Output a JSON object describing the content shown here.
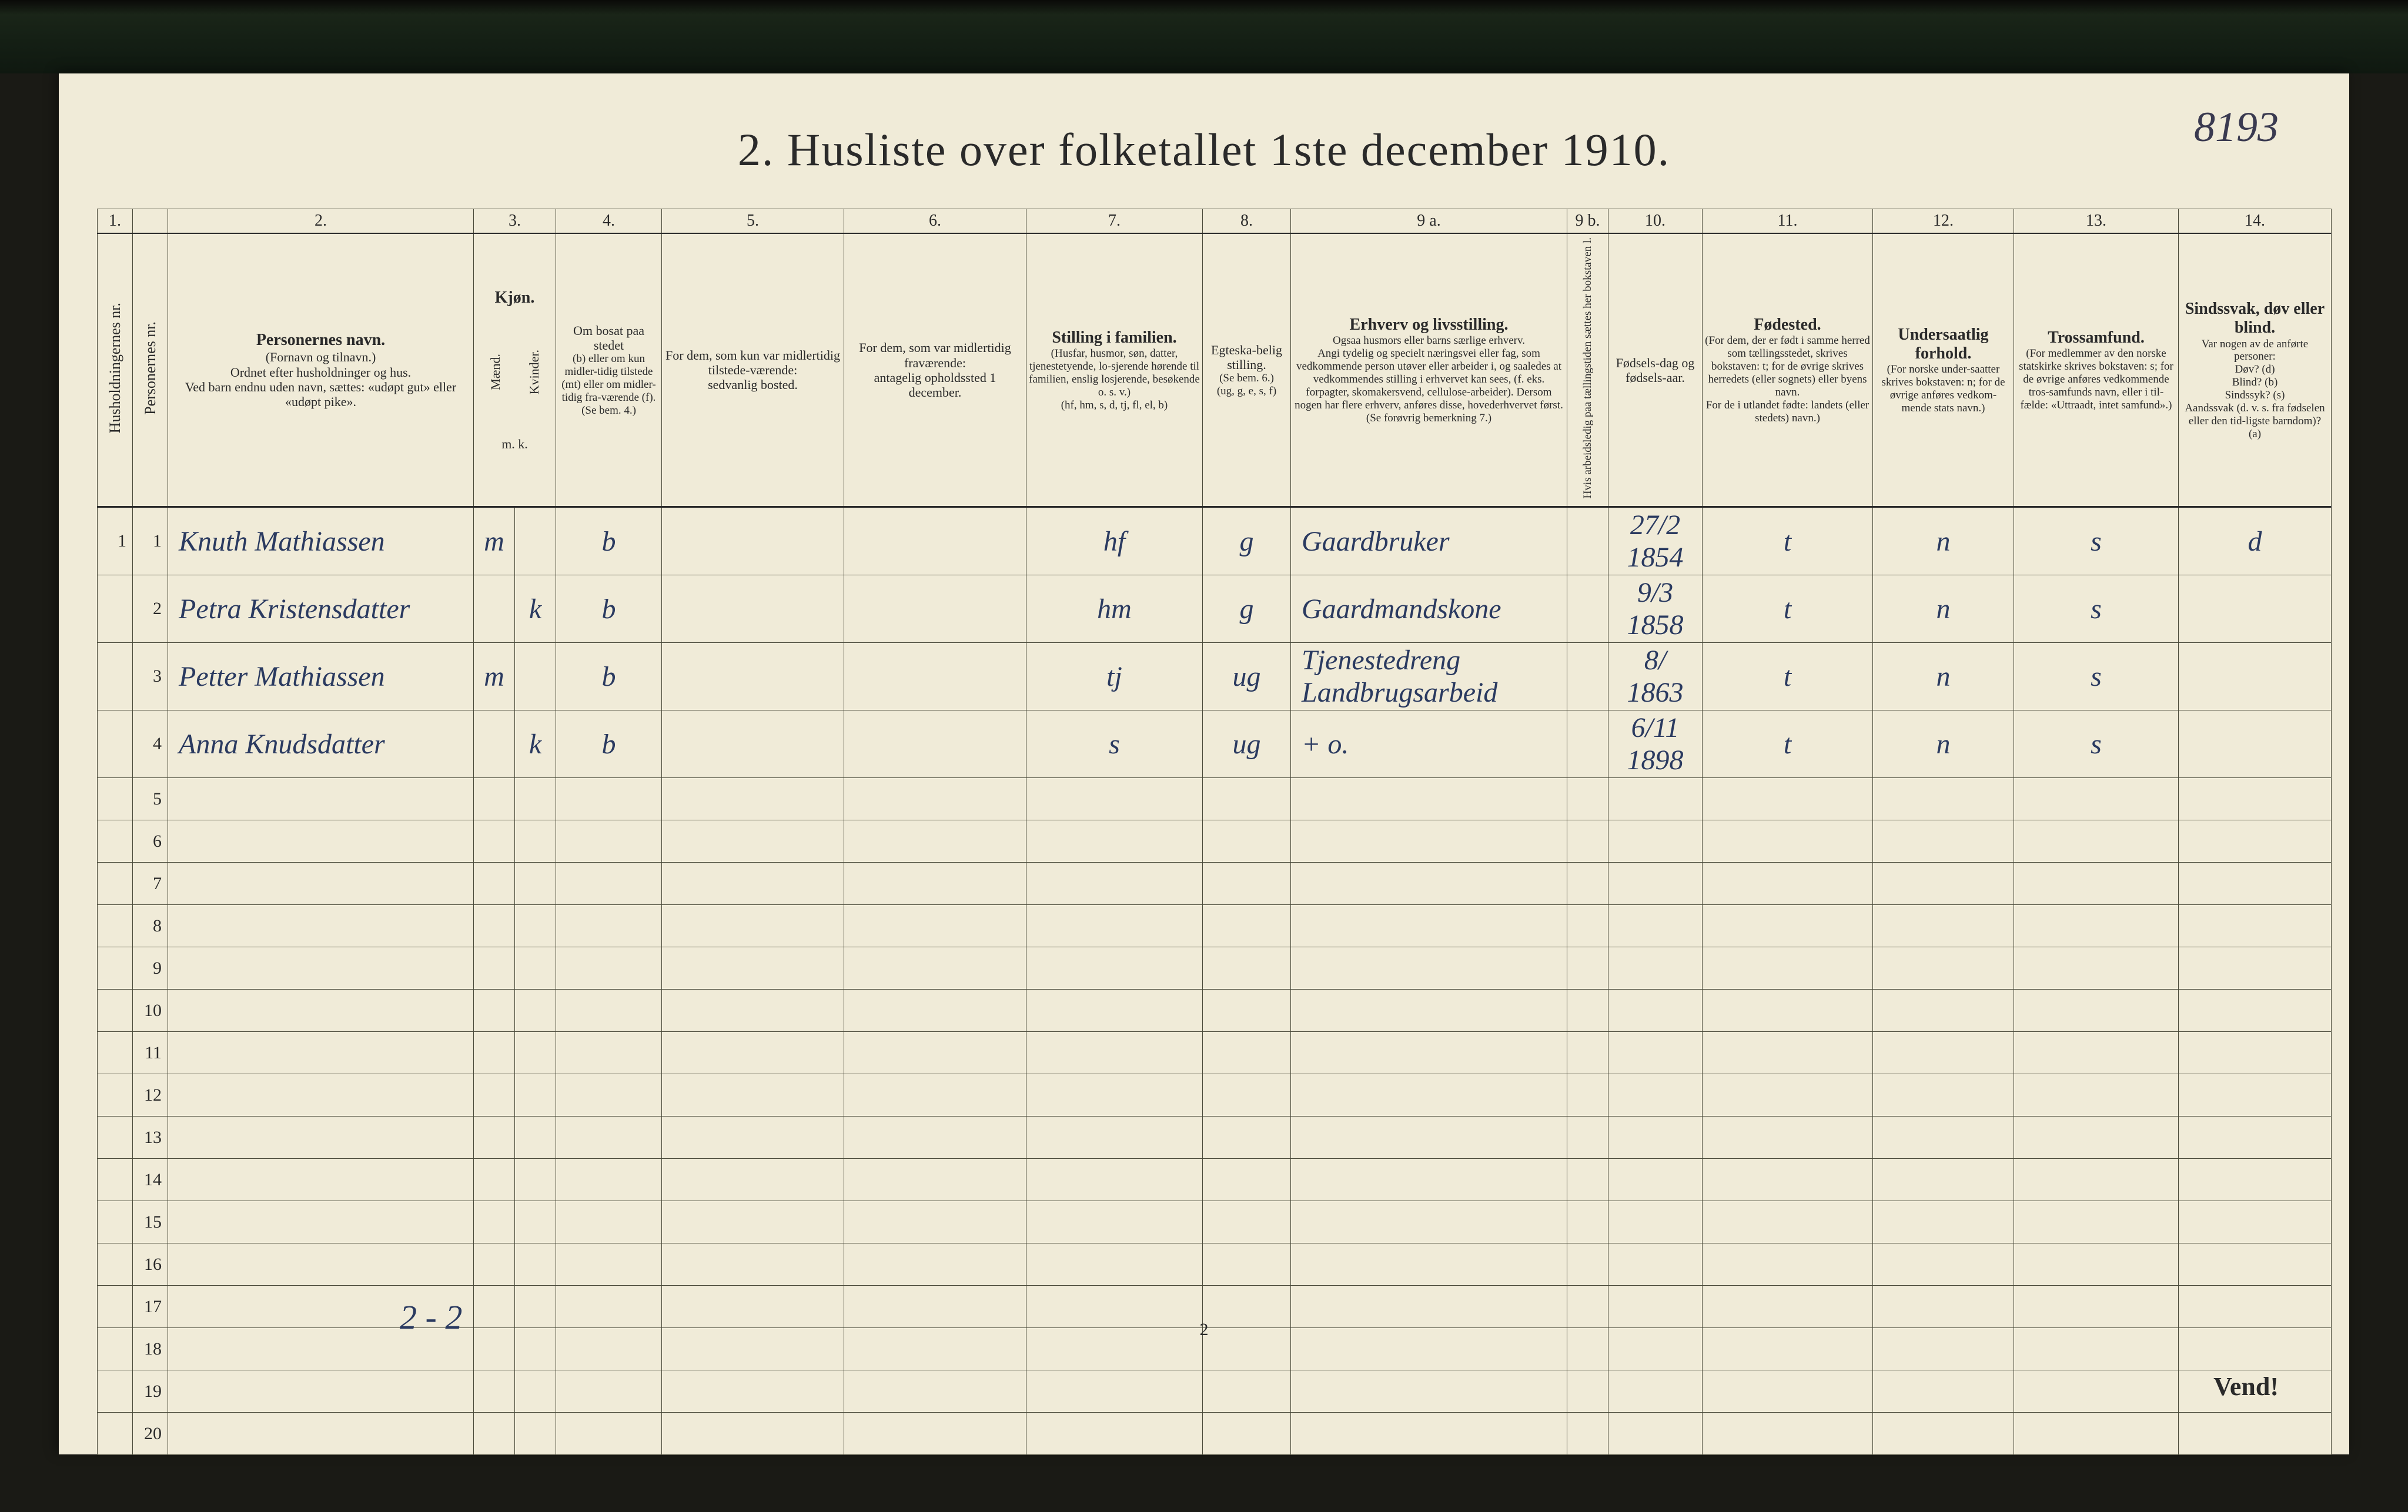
{
  "document": {
    "page_number_handwritten": "8193",
    "title": "2.  Husliste over folketallet 1ste december 1910.",
    "footer_handwritten": "2 - 2",
    "footer_page_number": "2",
    "turn_over": "Vend!"
  },
  "table": {
    "column_numbers": [
      "1.",
      "",
      "2.",
      "3.",
      "4.",
      "5.",
      "6.",
      "7.",
      "8.",
      "9 a.",
      "9 b.",
      "10.",
      "11.",
      "12.",
      "13.",
      "14."
    ],
    "headers": {
      "c1": "Husholdningernes nr.",
      "c2": "Personernes nr.",
      "c3_title": "Personernes navn.",
      "c3_sub": "(Fornavn og tilnavn.)\nOrdnet efter husholdninger og hus.\nVed barn endnu uden navn, sættes: «udøpt gut» eller «udøpt pike».",
      "c4_title": "Kjøn.",
      "c4_sub": "Mænd.",
      "c5_sub": "Kvinder.",
      "c4_foot": "m.  k.",
      "c6_title": "Om bosat paa stedet",
      "c6_sub": "(b) eller om kun midler-tidig tilstede (mt) eller om midler-tidig fra-værende (f).\n(Se bem. 4.)",
      "c7_title": "For dem, som kun var midlertidig tilstede-værende:",
      "c7_sub": "sedvanlig bosted.",
      "c8_title": "For dem, som var midlertidig fraværende:",
      "c8_sub": "antagelig opholdssted 1 december.",
      "c9_title": "Stilling i familien.",
      "c9_sub": "(Husfar, husmor, søn, datter, tjenestetyende, lo-sjerende hørende til familien, enslig losjerende, besøkende o. s. v.)\n(hf, hm, s, d, tj, fl, el, b)",
      "c10_title": "Egteska-belig stilling.",
      "c10_sub": "(Se bem. 6.)\n(ug, g, e, s, f)",
      "c11_title": "Erhverv og livsstilling.",
      "c11_sub": "Ogsaa husmors eller barns særlige erhverv.\nAngi tydelig og specielt næringsvei eller fag, som vedkommende person utøver eller arbeider i, og saaledes at vedkommendes stilling i erhvervet kan sees, (f. eks. forpagter, skomakersvend, cellulose-arbeider). Dersom nogen har flere erhverv, anføres disse, hovederhvervet først.\n(Se forøvrig bemerkning 7.)",
      "c12_title": "Hvis arbeidsledig paa tællingstiden sættes her bokstaven l.",
      "c13_title": "Fødsels-dag og fødsels-aar.",
      "c14_title": "Fødested.",
      "c14_sub": "(For dem, der er født i samme herred som tællingsstedet, skrives bokstaven: t; for de øvrige skrives herredets (eller sognets) eller byens navn.\nFor de i utlandet fødte: landets (eller stedets) navn.)",
      "c15_title": "Undersaatlig forhold.",
      "c15_sub": "(For norske under-saatter skrives bokstaven: n; for de øvrige anføres vedkom-mende stats navn.)",
      "c16_title": "Trossamfund.",
      "c16_sub": "(For medlemmer av den norske statskirke skrives bokstaven: s; for de øvrige anføres vedkommende tros-samfunds navn, eller i til-fælde: «Uttraadt, intet samfund».)",
      "c17_title": "Sindssvak, døv eller blind.",
      "c17_sub": "Var nogen av de anførte personer:\nDøv?        (d)\nBlind?      (b)\nSindssyk?  (s)\nAandssvak (d. v. s. fra fødselen eller den tid-ligste barndom)?  (a)"
    },
    "rows": [
      {
        "hh": "1",
        "pn": "1",
        "name": "Knuth Mathiassen",
        "sex_m": "m",
        "sex_k": "",
        "res": "b",
        "temp": "",
        "absent": "",
        "famstat": "hf",
        "marital": "g",
        "occupation": "Gaardbruker",
        "unemp": "",
        "birth": "27/2 1854",
        "birthplace": "t",
        "nationality": "n",
        "faith": "s",
        "disability": "d"
      },
      {
        "hh": "",
        "pn": "2",
        "name": "Petra Kristensdatter",
        "sex_m": "",
        "sex_k": "k",
        "res": "b",
        "temp": "",
        "absent": "",
        "famstat": "hm",
        "marital": "g",
        "occupation": "Gaardmandskone",
        "unemp": "",
        "birth": "9/3 1858",
        "birthplace": "t",
        "nationality": "n",
        "faith": "s",
        "disability": ""
      },
      {
        "hh": "",
        "pn": "3",
        "name": "Petter Mathiassen",
        "sex_m": "m",
        "sex_k": "",
        "res": "b",
        "temp": "",
        "absent": "",
        "famstat": "tj",
        "marital": "ug",
        "occupation": "Tjenestedreng Landbrugsarbeid",
        "unemp": "",
        "birth": "8/ 1863",
        "birthplace": "t",
        "nationality": "n",
        "faith": "s",
        "disability": ""
      },
      {
        "hh": "",
        "pn": "4",
        "name": "Anna Knudsdatter",
        "sex_m": "",
        "sex_k": "k",
        "res": "b",
        "temp": "",
        "absent": "",
        "famstat": "s",
        "marital": "ug",
        "occupation": "+ o.",
        "unemp": "",
        "birth": "6/11 1898",
        "birthplace": "t",
        "nationality": "n",
        "faith": "s",
        "disability": ""
      },
      {
        "hh": "",
        "pn": "5"
      },
      {
        "hh": "",
        "pn": "6"
      },
      {
        "hh": "",
        "pn": "7"
      },
      {
        "hh": "",
        "pn": "8"
      },
      {
        "hh": "",
        "pn": "9"
      },
      {
        "hh": "",
        "pn": "10"
      },
      {
        "hh": "",
        "pn": "11"
      },
      {
        "hh": "",
        "pn": "12"
      },
      {
        "hh": "",
        "pn": "13"
      },
      {
        "hh": "",
        "pn": "14"
      },
      {
        "hh": "",
        "pn": "15"
      },
      {
        "hh": "",
        "pn": "16"
      },
      {
        "hh": "",
        "pn": "17"
      },
      {
        "hh": "",
        "pn": "18"
      },
      {
        "hh": "",
        "pn": "19"
      },
      {
        "hh": "",
        "pn": "20"
      }
    ]
  },
  "style": {
    "page_bg": "#f0ebd8",
    "outer_bg": "#1a1a15",
    "ink_print": "#2a2a2a",
    "ink_hand": "#2a3a60",
    "rule": "#4a4a3a"
  }
}
